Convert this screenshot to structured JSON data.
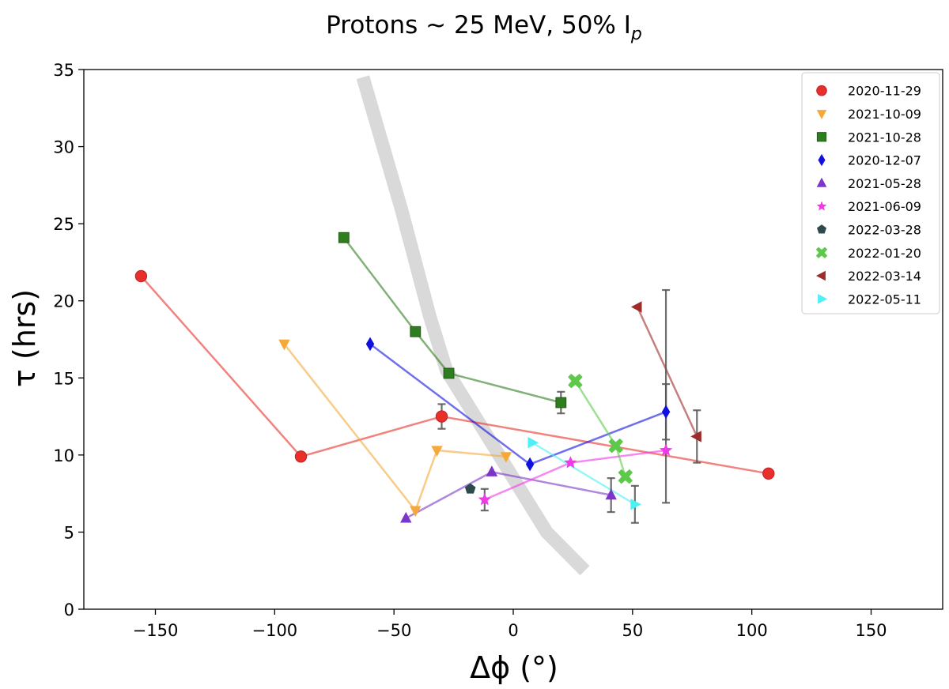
{
  "chart_data": {
    "type": "scatter",
    "title": "Protons ~ 25 MeV, 50% I",
    "title_subscript": "p",
    "xlabel": "Δϕ (°)",
    "ylabel": "τ (hrs)",
    "xlim": [
      -180,
      180
    ],
    "ylim": [
      0,
      35
    ],
    "xticks": [
      -150,
      -100,
      -50,
      0,
      50,
      100,
      150
    ],
    "yticks": [
      0,
      5,
      10,
      15,
      20,
      25,
      30,
      35
    ],
    "grid": false,
    "legend_position": "top-right",
    "series": [
      {
        "name": "2020-11-29",
        "color": "#e8302a",
        "marker": "circle",
        "x": [
          -156,
          -89,
          -30,
          107
        ],
        "y": [
          21.6,
          9.9,
          12.5,
          8.8
        ],
        "errors": [
          null,
          null,
          0.8,
          null
        ]
      },
      {
        "name": "2021-10-09",
        "color": "#f5a93a",
        "marker": "triangle-down",
        "x": [
          -96,
          -41,
          -32,
          -3
        ],
        "y": [
          17.2,
          6.4,
          10.3,
          9.9
        ],
        "errors": [
          null,
          null,
          null,
          null
        ]
      },
      {
        "name": "2021-10-28",
        "color": "#2e7d1e",
        "marker": "square",
        "x": [
          -71,
          -41,
          -27,
          20
        ],
        "y": [
          24.1,
          18.0,
          15.3,
          13.4
        ],
        "errors": [
          null,
          null,
          null,
          0.7
        ]
      },
      {
        "name": "2020-12-07",
        "color": "#1010e0",
        "marker": "diamond",
        "x": [
          -60,
          7,
          64
        ],
        "y": [
          17.2,
          9.4,
          12.8
        ],
        "errors": [
          null,
          null,
          1.8
        ]
      },
      {
        "name": "2021-05-28",
        "color": "#7b35c8",
        "marker": "triangle-up",
        "x": [
          -45,
          -9,
          41
        ],
        "y": [
          5.9,
          8.9,
          7.4
        ],
        "errors": [
          null,
          null,
          1.1
        ]
      },
      {
        "name": "2021-06-09",
        "color": "#f03ae8",
        "marker": "star",
        "x": [
          -12,
          24,
          64
        ],
        "y": [
          7.1,
          9.5,
          10.3
        ],
        "errors": [
          0.7,
          null,
          null
        ]
      },
      {
        "name": "2022-03-28",
        "color": "#2f4a4f",
        "marker": "pentagon",
        "x": [
          -18
        ],
        "y": [
          7.8
        ],
        "errors": [
          null
        ]
      },
      {
        "name": "2022-01-20",
        "color": "#5dc94a",
        "marker": "x",
        "x": [
          26,
          43,
          47
        ],
        "y": [
          14.8,
          10.6,
          8.6
        ],
        "errors": [
          null,
          null,
          null
        ]
      },
      {
        "name": "2022-03-14",
        "color": "#9e2a2a",
        "marker": "triangle-left",
        "x": [
          52,
          77
        ],
        "y": [
          19.6,
          11.2
        ],
        "errors": [
          null,
          1.7
        ]
      },
      {
        "name": "2022-05-11",
        "color": "#4ff0f5",
        "marker": "triangle-right",
        "x": [
          8,
          51
        ],
        "y": [
          10.8,
          6.8
        ],
        "errors": [
          null,
          1.2
        ]
      }
    ],
    "extra_errorbar": {
      "x": 64,
      "y": 13.8,
      "err": 6.9
    },
    "band": {
      "color": "#d9d9d9",
      "x": [
        -63,
        -47,
        -35,
        -28,
        -14,
        0,
        14,
        30
      ],
      "y": [
        34.5,
        26,
        19,
        15.5,
        12,
        8.5,
        5,
        2.5
      ]
    }
  }
}
